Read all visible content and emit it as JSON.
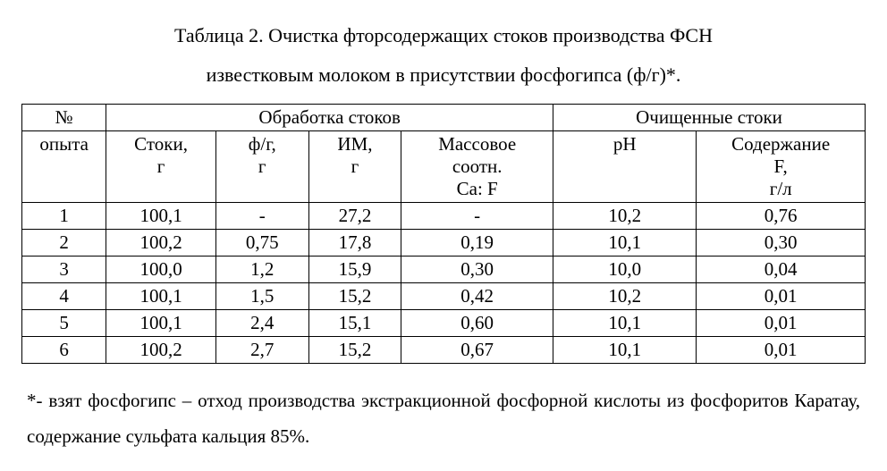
{
  "title_line1": "Таблица 2. Очистка фторсодержащих стоков производства ФСН",
  "title_line2": "известковым молоком в присутствии фосфогипса (ф/г)*.",
  "header": {
    "exp_no_l1": "№",
    "exp_no_l2": "опыта",
    "treatment": "Обработка стоков",
    "purified": "Очищенные стоки",
    "col_a_l1": "Стоки,",
    "col_a_l2": "г",
    "col_b_l1": "ф/г,",
    "col_b_l2": "г",
    "col_c_l1": "ИМ,",
    "col_c_l2": "г",
    "col_d_l1": "Массовое",
    "col_d_l2": "соотн.",
    "col_d_l3": "Ca: F",
    "col_e_l1": "pH",
    "col_f_l1": "Содержание",
    "col_f_l2": "F,",
    "col_f_l3": "г/л"
  },
  "rows": [
    {
      "n": "1",
      "a": "100,1",
      "b": "-",
      "c": "27,2",
      "d": "-",
      "e": "10,2",
      "f": "0,76"
    },
    {
      "n": "2",
      "a": "100,2",
      "b": "0,75",
      "c": "17,8",
      "d": "0,19",
      "e": "10,1",
      "f": "0,30"
    },
    {
      "n": "3",
      "a": "100,0",
      "b": "1,2",
      "c": "15,9",
      "d": "0,30",
      "e": "10,0",
      "f": "0,04"
    },
    {
      "n": "4",
      "a": "100,1",
      "b": "1,5",
      "c": "15,2",
      "d": "0,42",
      "e": "10,2",
      "f": "0,01"
    },
    {
      "n": "5",
      "a": "100,1",
      "b": "2,4",
      "c": "15,1",
      "d": "0,60",
      "e": "10,1",
      "f": "0,01"
    },
    {
      "n": "6",
      "a": "100,2",
      "b": "2,7",
      "c": "15,2",
      "d": "0,67",
      "e": "10,1",
      "f": "0,01"
    }
  ],
  "footnote": "*- взят фосфогипс – отход производства экстракционной фосфорной кислоты из фосфоритов Каратау, содержание сульфата кальция 85%."
}
